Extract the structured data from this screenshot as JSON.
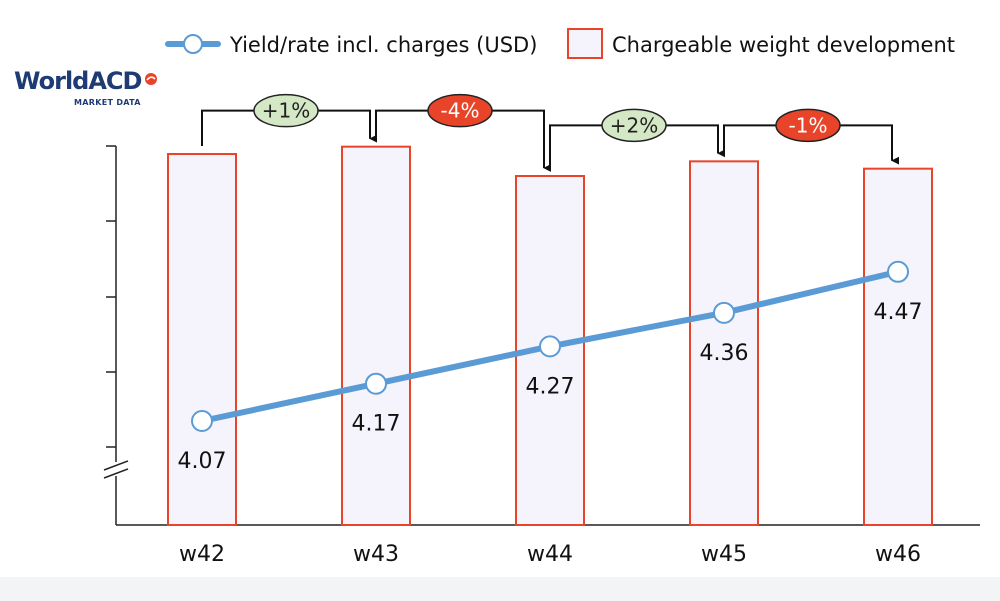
{
  "logo": {
    "name": "WorldACD",
    "subtitle": "MARKET DATA",
    "color": "#1f3b73",
    "accent": "#e8442a"
  },
  "chart_data": {
    "type": "bar",
    "categories": [
      "w42",
      "w43",
      "w44",
      "w45",
      "w46"
    ],
    "series": [
      {
        "name": "Chargeable weight development",
        "type": "bar",
        "relative_values": [
          100,
          101,
          97,
          99,
          98
        ],
        "color": "#e8442a",
        "fill": "#f5f3fb"
      },
      {
        "name": "Yield/rate incl. charges (USD)",
        "type": "line",
        "values": [
          4.07,
          4.17,
          4.27,
          4.36,
          4.47
        ],
        "labels": [
          "4.07",
          "4.17",
          "4.27",
          "4.36",
          "4.47"
        ],
        "color": "#5b9bd5"
      }
    ],
    "changes": [
      {
        "from": "w42",
        "to": "w43",
        "label": "+1%",
        "color": "#d5e8c5"
      },
      {
        "from": "w43",
        "to": "w44",
        "label": "-4%",
        "color": "#e8442a"
      },
      {
        "from": "w44",
        "to": "w45",
        "label": "+2%",
        "color": "#d5e8c5"
      },
      {
        "from": "w45",
        "to": "w46",
        "label": "-1%",
        "color": "#e8442a"
      }
    ],
    "axis_break": true,
    "grid": false,
    "legend_position": "top"
  }
}
